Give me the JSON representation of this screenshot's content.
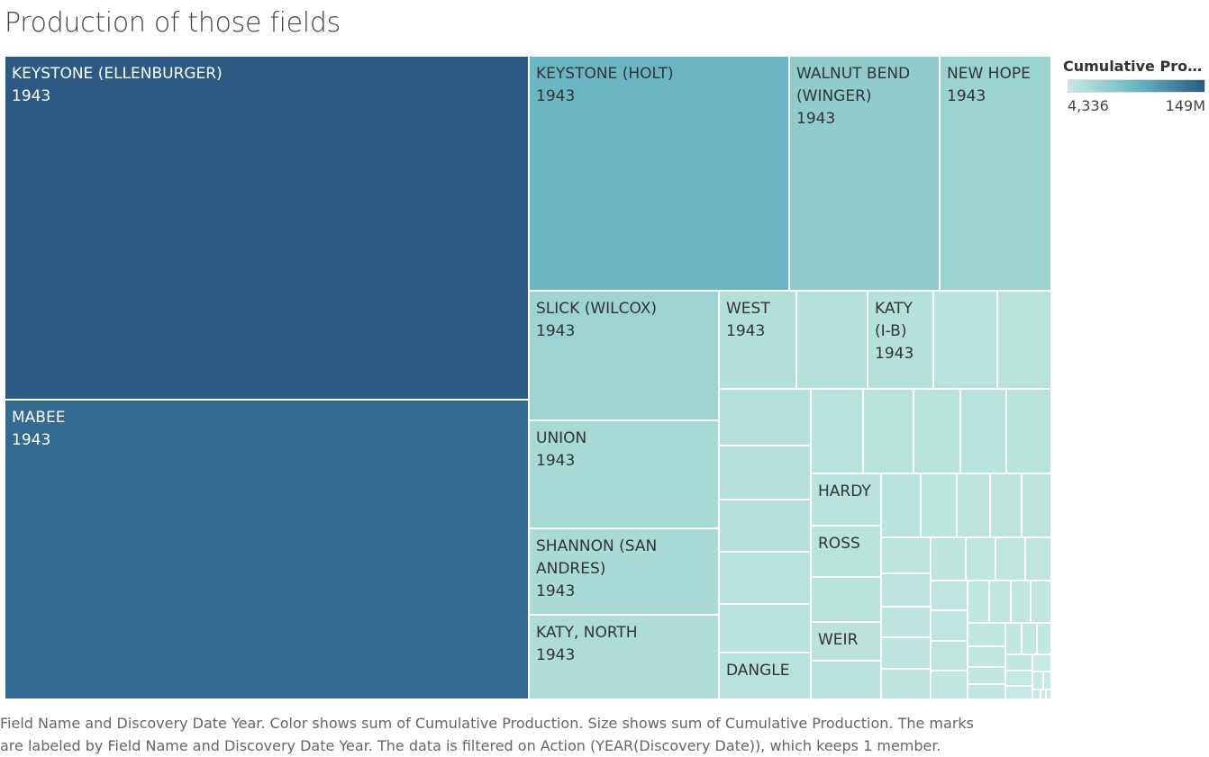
{
  "chart_data": {
    "type": "treemap",
    "title": "Production of those fields",
    "legend": {
      "title": "Cumulative Produ..",
      "min_label": "4,336",
      "max_label": "149M"
    },
    "caption_line1": "Field Name and Discovery Date Year.  Color shows sum of Cumulative Production.  Size shows sum of Cumulative Production.  The marks",
    "caption_line2": "are labeled by Field Name and Discovery Date Year. The data is filtered on Action (YEAR(Discovery Date)), which keeps 1 member.",
    "year": "1943",
    "labeled_fields": [
      {
        "name": "KEYSTONE (ELLENBURGER)",
        "label": "KEYSTONE (ELLENBURGER)\n1943"
      },
      {
        "name": "MABEE",
        "label": "MABEE\n1943"
      },
      {
        "name": "KEYSTONE (HOLT)",
        "label": "KEYSTONE (HOLT)\n1943"
      },
      {
        "name": "WALNUT BEND (WINGER)",
        "label": "WALNUT BEND\n(WINGER)\n1943"
      },
      {
        "name": "NEW HOPE",
        "label": "NEW HOPE\n1943"
      },
      {
        "name": "SLICK (WILCOX)",
        "label": "SLICK (WILCOX)\n1943"
      },
      {
        "name": "WEST",
        "label": "WEST\n1943"
      },
      {
        "name": "KATY (I-B)",
        "label": "KATY\n(I-B)\n1943"
      },
      {
        "name": "UNION",
        "label": "UNION\n1943"
      },
      {
        "name": "SHANNON (SAN ANDRES)",
        "label": "SHANNON (SAN\nANDRES)\n1943"
      },
      {
        "name": "KATY, NORTH",
        "label": "KATY, NORTH\n1943"
      },
      {
        "name": "HARDY",
        "label": "HARDY"
      },
      {
        "name": "ROSS",
        "label": "ROSS"
      },
      {
        "name": "WEIR",
        "label": "WEIR"
      },
      {
        "name": "DANGLE",
        "label": "DANGLE"
      }
    ],
    "colors": {
      "low": "#c8e9e3",
      "mid": "#6ab6c2",
      "high": "#2b5a84"
    }
  }
}
